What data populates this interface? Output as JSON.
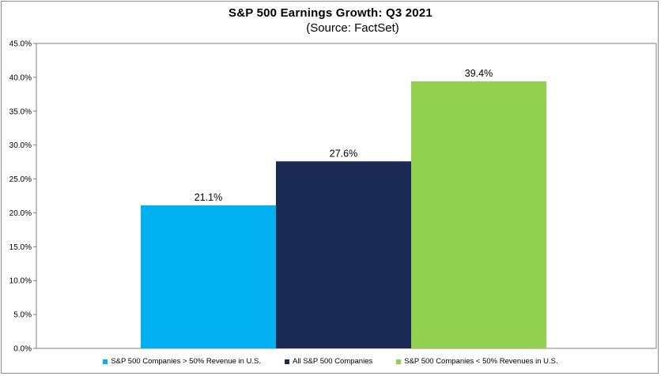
{
  "chart_data": {
    "type": "bar",
    "title": "S&P 500 Earnings Growth:  Q3 2021",
    "subtitle": "(Source: FactSet)",
    "categories": [
      "S&P 500 Companies > 50% Revenue in U.S.",
      "All S&P 500 Companies",
      "S&P 500 Companies < 50% Revenues in U.S."
    ],
    "values": [
      21.1,
      27.6,
      39.4
    ],
    "data_labels": [
      "21.1%",
      "27.6%",
      "39.4%"
    ],
    "colors": [
      "#00b0f0",
      "#1b2a55",
      "#92d050"
    ],
    "ylim": [
      0,
      45
    ],
    "yticks": [
      0,
      5,
      10,
      15,
      20,
      25,
      30,
      35,
      40,
      45
    ],
    "ytick_labels": [
      "0.0%",
      "5.0%",
      "10.0%",
      "15.0%",
      "20.0%",
      "25.0%",
      "30.0%",
      "35.0%",
      "40.0%",
      "45.0%"
    ],
    "grid": false,
    "legend_position": "bottom"
  }
}
